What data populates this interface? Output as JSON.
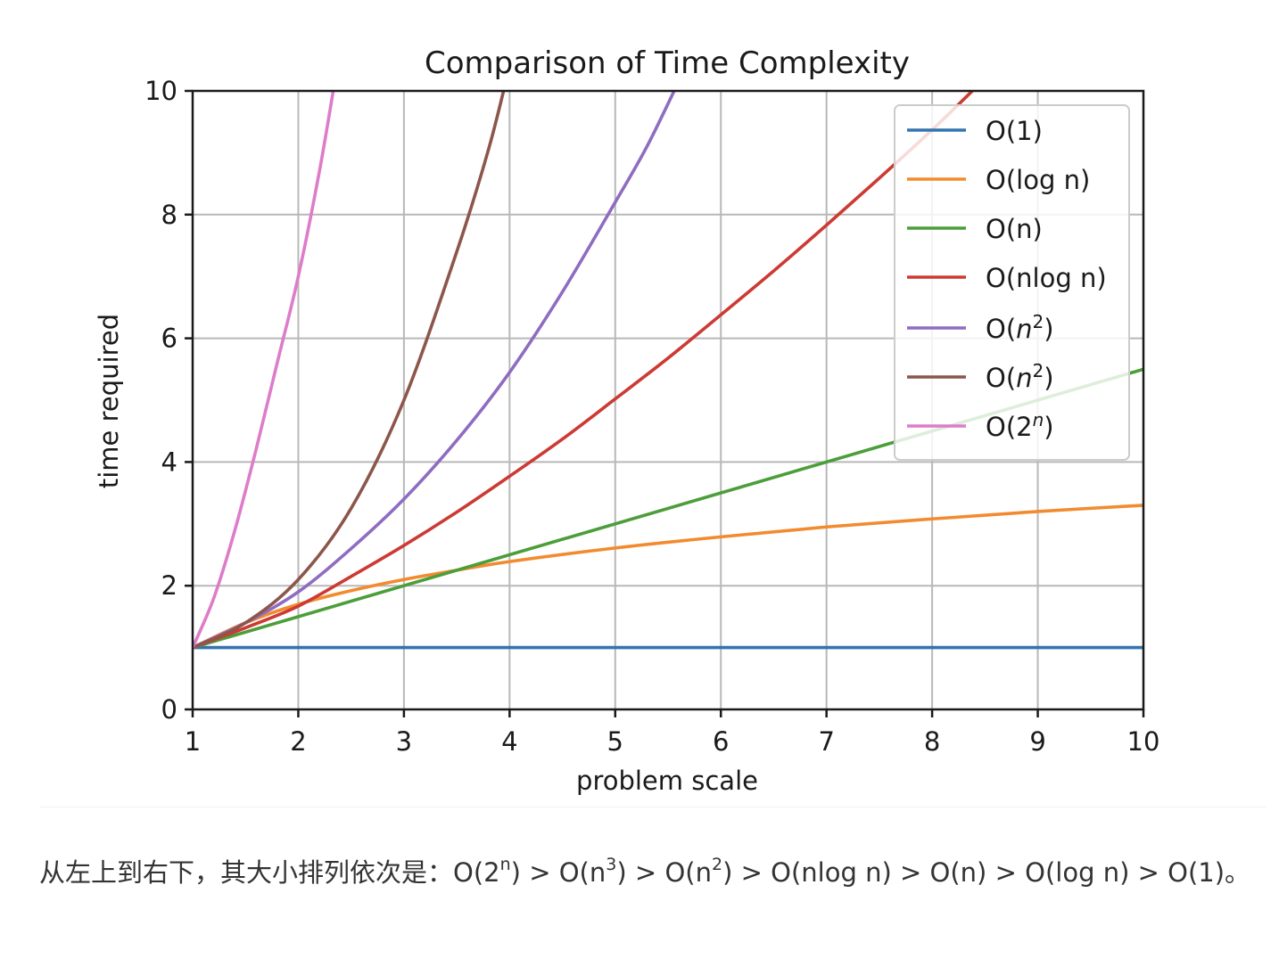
{
  "chart_data": {
    "type": "line",
    "title": "Comparison of Time Complexity",
    "xlabel": "problem scale",
    "ylabel": "time required",
    "xlim": [
      1,
      10
    ],
    "ylim": [
      0,
      10
    ],
    "xticks": [
      "1",
      "2",
      "3",
      "4",
      "5",
      "6",
      "7",
      "8",
      "9",
      "10"
    ],
    "yticks": [
      "0",
      "2",
      "4",
      "6",
      "8",
      "10"
    ],
    "grid": true,
    "legend_position": "top-right",
    "series": [
      {
        "name": "O(1)",
        "legend_base": "O(1)",
        "legend_sup": "",
        "italic": false,
        "color": "#3274b0",
        "x": [
          1,
          10
        ],
        "y": [
          1,
          1
        ]
      },
      {
        "name": "O(log n)",
        "legend_base": "O(log n)",
        "legend_sup": "",
        "italic": false,
        "color": "#f28b2f",
        "x": [
          1,
          1.5,
          2,
          2.5,
          3,
          3.5,
          4,
          5,
          6,
          7,
          8,
          9,
          10
        ],
        "y": [
          1.0,
          1.4,
          1.7,
          1.92,
          2.1,
          2.25,
          2.39,
          2.61,
          2.79,
          2.95,
          3.08,
          3.2,
          3.3
        ]
      },
      {
        "name": "O(n)",
        "legend_base": "O(n)",
        "legend_sup": "",
        "italic": false,
        "color": "#4c9e3a",
        "x": [
          1,
          10
        ],
        "y": [
          1,
          5.5
        ]
      },
      {
        "name": "O(nlog n)",
        "legend_base": "O(nlog n)",
        "legend_sup": "",
        "italic": false,
        "color": "#cd3a33",
        "x": [
          1,
          1.5,
          2,
          2.5,
          3,
          3.5,
          4,
          4.5,
          5,
          5.5,
          6,
          6.5,
          7,
          7.5,
          8,
          8.5
        ],
        "y": [
          1.0,
          1.32,
          1.67,
          2.15,
          2.65,
          3.19,
          3.77,
          4.37,
          5.02,
          5.68,
          6.38,
          7.09,
          7.83,
          8.59,
          9.37,
          10.2
        ]
      },
      {
        "name": "O(n^2)",
        "legend_base": "O(",
        "legend_sup": "2",
        "italic": true,
        "color": "#8f6cc1",
        "x": [
          1,
          1.5,
          2,
          2.5,
          3,
          3.5,
          4,
          4.5,
          5,
          5.3,
          5.6
        ],
        "y": [
          1.0,
          1.4,
          1.9,
          2.6,
          3.4,
          4.35,
          5.45,
          6.75,
          8.2,
          9.1,
          10.15
        ]
      },
      {
        "name": "O(n^2)",
        "legend_base": "O(",
        "legend_sup": "2",
        "italic": true,
        "color": "#8c564b",
        "x": [
          1,
          1.5,
          2,
          2.5,
          3,
          3.5,
          3.8,
          4.0
        ],
        "y": [
          1.0,
          1.4,
          2.1,
          3.25,
          5.0,
          7.4,
          9.05,
          10.4
        ]
      },
      {
        "name": "O(2^n)",
        "legend_base": "O(2",
        "legend_sup": "n",
        "italic": true,
        "color": "#dd7dc9",
        "x": [
          1,
          1.2,
          1.4,
          1.6,
          1.8,
          2.0,
          2.2,
          2.35
        ],
        "y": [
          1.0,
          1.8,
          2.9,
          4.2,
          5.6,
          7.0,
          8.7,
          10.2
        ]
      }
    ]
  },
  "caption": {
    "text_before": "从左上到右下，其大小排列依次是：",
    "items": [
      {
        "base": "O(2",
        "sup": "n",
        "end": ")"
      },
      {
        "base": "O(n",
        "sup": "3",
        "end": ")"
      },
      {
        "base": "O(n",
        "sup": "2",
        "end": ")"
      },
      {
        "base": "O(nlog n)",
        "sup": "",
        "end": ""
      },
      {
        "base": "O(n)",
        "sup": "",
        "end": ""
      },
      {
        "base": "O(log n)",
        "sup": "",
        "end": ""
      },
      {
        "base": "O(1)",
        "sup": "",
        "end": ""
      }
    ],
    "separator": " > ",
    "text_after": "。"
  }
}
